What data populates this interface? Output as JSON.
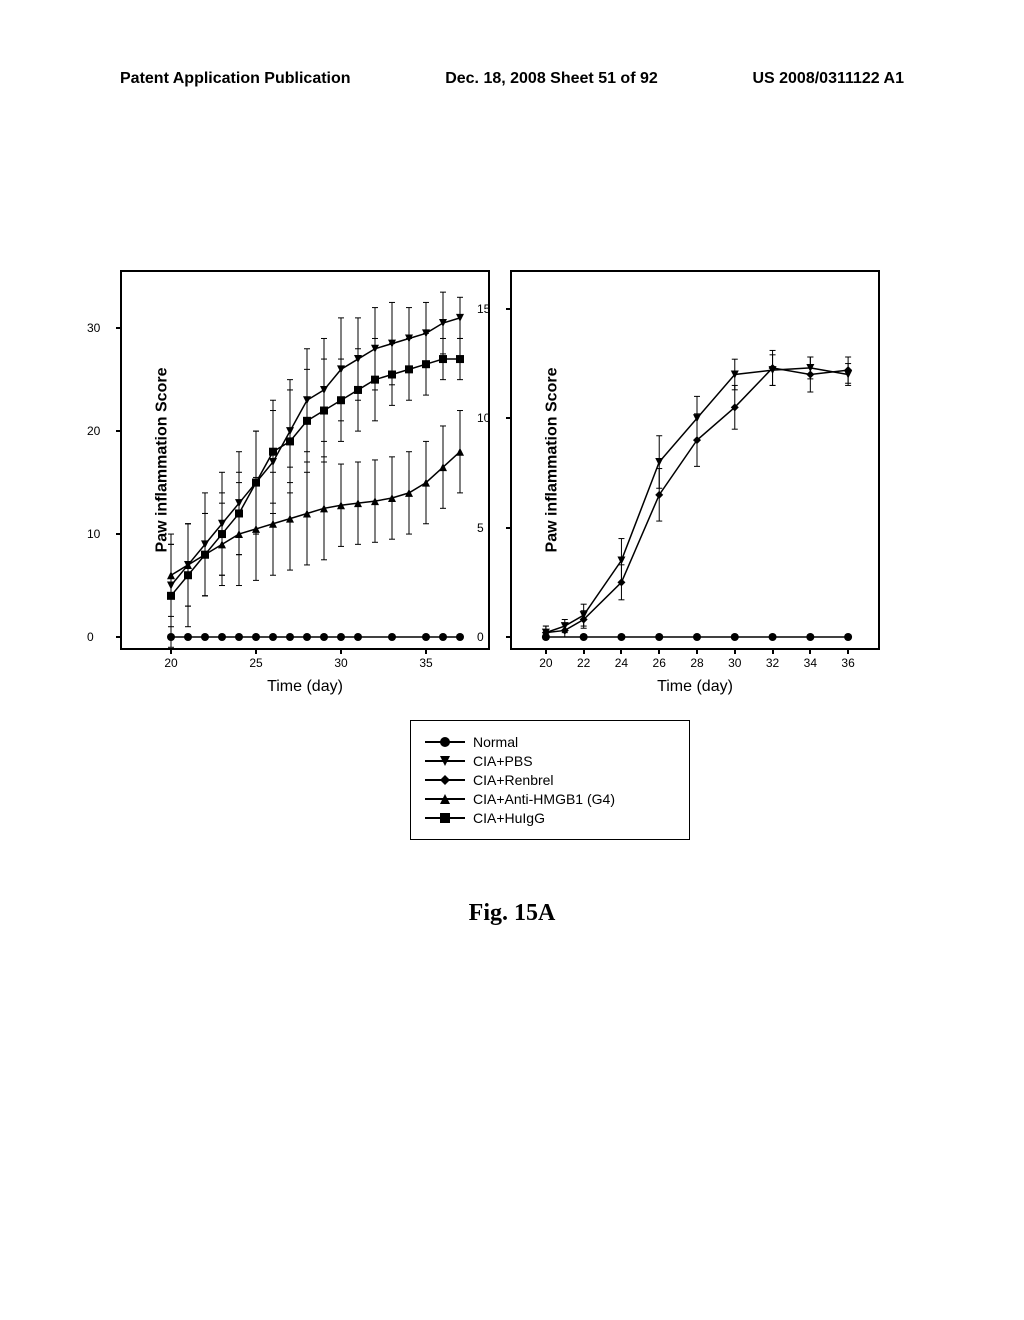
{
  "header": {
    "left": "Patent Application Publication",
    "center": "Dec. 18, 2008  Sheet 51 of 92",
    "right": "US 2008/0311122 A1"
  },
  "chart_left": {
    "type": "line",
    "ylabel": "Paw inflammation Score",
    "xlabel": "Time (day)",
    "xlim": [
      18,
      38
    ],
    "ylim": [
      0,
      34
    ],
    "yticks": [
      0,
      10,
      20,
      30
    ],
    "xticks": [
      20,
      25,
      30,
      35
    ],
    "background_color": "#ffffff",
    "line_color": "#000000",
    "series": {
      "normal": {
        "marker": "circle",
        "x": [
          20,
          21,
          22,
          23,
          24,
          25,
          26,
          27,
          28,
          29,
          30,
          31,
          33,
          35,
          36,
          37
        ],
        "y": [
          0,
          0,
          0,
          0,
          0,
          0,
          0,
          0,
          0,
          0,
          0,
          0,
          0,
          0,
          0,
          0
        ]
      },
      "cia_pbs": {
        "marker": "triangle-down",
        "x": [
          20,
          21,
          22,
          23,
          24,
          25,
          26,
          27,
          28,
          29,
          30,
          31,
          32,
          33,
          34,
          35,
          36,
          37
        ],
        "y": [
          5,
          7,
          9,
          11,
          13,
          15,
          17,
          20,
          23,
          24,
          26,
          27,
          28,
          28.5,
          29,
          29.5,
          30.5,
          31
        ],
        "err": [
          4,
          4,
          5,
          5,
          5,
          5,
          5,
          5,
          5,
          5,
          5,
          4,
          4,
          4,
          3,
          3,
          3,
          2
        ]
      },
      "cia_anti": {
        "marker": "triangle-up",
        "x": [
          20,
          21,
          22,
          23,
          24,
          25,
          26,
          27,
          28,
          29,
          30,
          31,
          32,
          33,
          34,
          35,
          36,
          37
        ],
        "y": [
          6,
          7,
          8,
          9,
          10,
          10.5,
          11,
          11.5,
          12,
          12.5,
          12.8,
          13,
          13.2,
          13.5,
          14,
          15,
          16.5,
          18
        ],
        "err": [
          4,
          4,
          4,
          4,
          5,
          5,
          5,
          5,
          5,
          5,
          4,
          4,
          4,
          4,
          4,
          4,
          4,
          4
        ]
      },
      "cia_huigg": {
        "marker": "square",
        "x": [
          20,
          21,
          22,
          23,
          24,
          25,
          26,
          27,
          28,
          29,
          30,
          31,
          32,
          33,
          34,
          35,
          36,
          37
        ],
        "y": [
          4,
          6,
          8,
          10,
          12,
          15,
          18,
          19,
          21,
          22,
          23,
          24,
          25,
          25.5,
          26,
          26.5,
          27,
          27
        ],
        "err": [
          5,
          5,
          4,
          4,
          4,
          5,
          5,
          5,
          5,
          5,
          4,
          4,
          4,
          3,
          3,
          3,
          2,
          2
        ]
      }
    }
  },
  "chart_right": {
    "type": "line",
    "ylabel": "Paw inflammation Score",
    "xlabel": "Time (day)",
    "xlim": [
      19,
      37
    ],
    "ylim": [
      0,
      16
    ],
    "yticks": [
      0,
      5,
      10,
      15
    ],
    "xticks": [
      20,
      22,
      24,
      26,
      28,
      30,
      32,
      34,
      36
    ],
    "background_color": "#ffffff",
    "line_color": "#000000",
    "series": {
      "normal": {
        "marker": "circle",
        "x": [
          20,
          22,
          24,
          26,
          28,
          30,
          32,
          34,
          36
        ],
        "y": [
          0,
          0,
          0,
          0,
          0,
          0,
          0,
          0,
          0
        ]
      },
      "cia_pbs": {
        "marker": "triangle-down",
        "x": [
          20,
          21,
          22,
          24,
          26,
          28,
          30,
          32,
          34,
          36
        ],
        "y": [
          0.2,
          0.5,
          1,
          3.5,
          8,
          10,
          12,
          12.2,
          12.3,
          12
        ],
        "err": [
          0.3,
          0.3,
          0.5,
          1,
          1.2,
          1,
          0.7,
          0.7,
          0.5,
          0.5
        ]
      },
      "cia_renbrel": {
        "marker": "diamond",
        "x": [
          20,
          21,
          22,
          24,
          26,
          28,
          30,
          32,
          34,
          36
        ],
        "y": [
          0.2,
          0.3,
          0.8,
          2.5,
          6.5,
          9,
          10.5,
          12.3,
          12,
          12.2
        ],
        "err": [
          0.3,
          0.3,
          0.4,
          0.8,
          1.2,
          1.2,
          1,
          0.8,
          0.8,
          0.6
        ]
      }
    }
  },
  "legend": {
    "items": [
      {
        "marker": "circle",
        "label": "Normal"
      },
      {
        "marker": "triangle-down",
        "label": "CIA+PBS"
      },
      {
        "marker": "diamond",
        "label": "CIA+Renbrel"
      },
      {
        "marker": "triangle-up",
        "label": "CIA+Anti-HMGB1 (G4)"
      },
      {
        "marker": "square",
        "label": "CIA+HuIgG"
      }
    ]
  },
  "figure_label": "Fig. 15A",
  "colors": {
    "line": "#000000",
    "marker_fill": "#000000",
    "background": "#ffffff",
    "border": "#000000"
  }
}
